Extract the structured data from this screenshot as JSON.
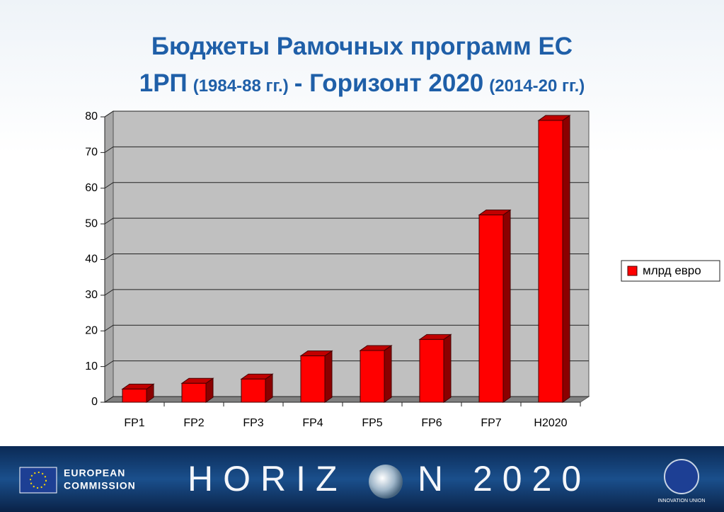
{
  "chart_data": {
    "type": "bar3d",
    "title": "Бюджеты Рамочных программ ЕС",
    "title_line2": [
      "1РП",
      "(1984-88 гг.)",
      "- Горизонт 2020",
      "(2014-20 гг.)"
    ],
    "categories": [
      "FP1",
      "FP2",
      "FP3",
      "FP4",
      "FP5",
      "FP6",
      "FP7",
      "H2020"
    ],
    "series": [
      {
        "name": "млрд евро",
        "color": "#ff0000",
        "values": [
          3.7,
          5.3,
          6.5,
          13,
          14.5,
          17.6,
          52.5,
          79
        ]
      }
    ],
    "ylim": [
      0,
      80
    ],
    "yticks": [
      0,
      10,
      20,
      30,
      40,
      50,
      60,
      70,
      80
    ],
    "grid": true,
    "legend": "right"
  },
  "footer": {
    "org": [
      "EUROPEAN",
      "COMMISSION"
    ],
    "brand": [
      "HORIZ",
      "N 2020"
    ],
    "badge": "INNOVATION UNION"
  }
}
